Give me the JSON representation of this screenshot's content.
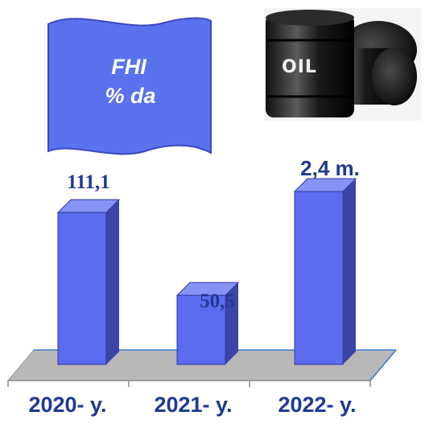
{
  "banner": {
    "line1": "FHI",
    "line2": "% da"
  },
  "oil_image": {
    "label": "OIL",
    "icon": "oil-barrels-icon"
  },
  "colors": {
    "bar_front": "#5b6cf0",
    "bar_side": "#3b45a8",
    "bar_top": "#8593f5",
    "floor": "#b8b8b8",
    "floor_edge": "#3a78d0",
    "label": "#1f3a93",
    "banner": "#5a72ee"
  },
  "chart_data": {
    "type": "bar",
    "categories": [
      "2020- y.",
      "2021- y.",
      "2022- y."
    ],
    "values": [
      111.1,
      50.5,
      null
    ],
    "value_labels": [
      "111,1",
      "50,5",
      "2,4 m."
    ],
    "title": "",
    "xlabel": "",
    "ylabel": ""
  }
}
